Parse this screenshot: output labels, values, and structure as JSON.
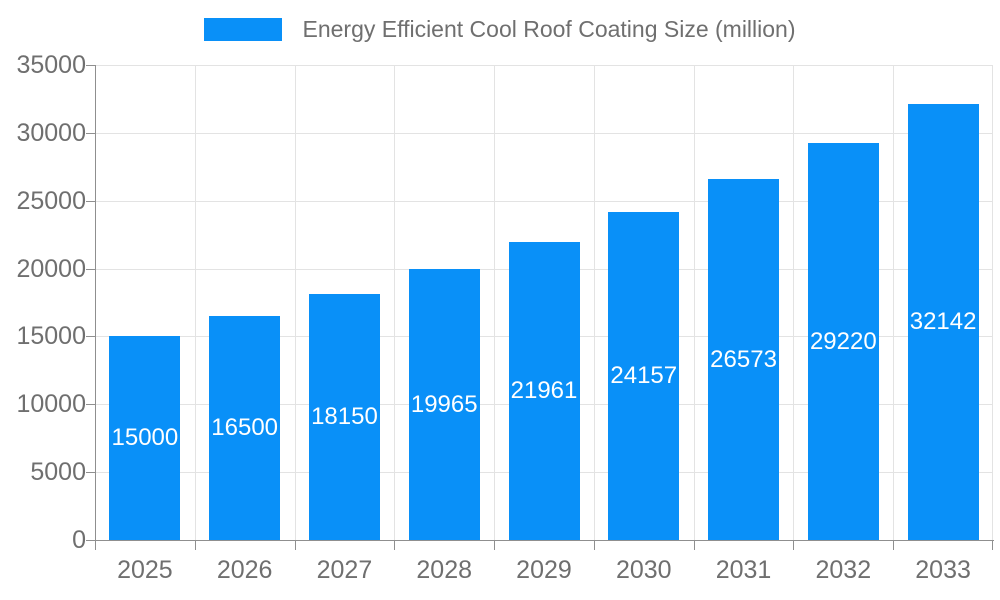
{
  "legend": {
    "label": "Energy Efficient Cool Roof Coating Size (million)",
    "swatch_color": "#0990f8"
  },
  "chart_data": {
    "type": "bar",
    "title": "Energy Efficient Cool Roof Coating Size (million)",
    "categories": [
      "2025",
      "2026",
      "2027",
      "2028",
      "2029",
      "2030",
      "2031",
      "2032",
      "2033"
    ],
    "series": [
      {
        "name": "Energy Efficient Cool Roof Coating Size (million)",
        "values": [
          15000,
          16500,
          18150,
          19965,
          21961,
          24157,
          26573,
          29220,
          32142
        ]
      }
    ],
    "bar_labels_shown": true,
    "bar_label_position": "inside-center",
    "xlabel": "",
    "ylabel": "",
    "ylim": [
      0,
      35000
    ],
    "yticks": [
      0,
      5000,
      10000,
      15000,
      20000,
      25000,
      30000,
      35000
    ],
    "grid": true,
    "legend_position": "top-center",
    "colors": {
      "bar": "#0990f8",
      "bar_label_text": "#ffffff",
      "axis_text": "#6f6f6f",
      "gridline": "#e3e3e3",
      "axis_line": "#8f8f8f",
      "background": "#ffffff"
    }
  }
}
